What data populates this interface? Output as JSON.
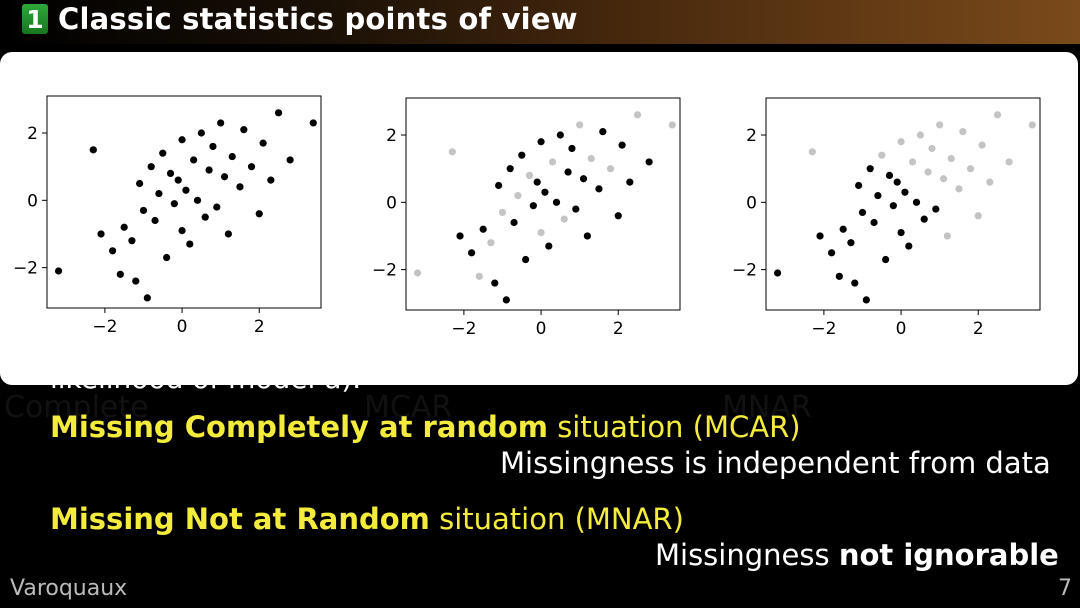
{
  "slide": {
    "section_number": "1",
    "title": "Classic statistics points of view",
    "partially_hidden_line": "likelihood of model a).",
    "mcar": {
      "term": "Missing Completely at random",
      "rest": " situation (MCAR)",
      "note": "Missingness is independent from data"
    },
    "mnar": {
      "term": "Missing Not at Random",
      "rest": " situation (MNAR)",
      "note_plain": "Missingness ",
      "note_bold": "not ignorable"
    },
    "footer_author": "Varoquaux",
    "page_number": "7"
  },
  "figure": {
    "captions": [
      "Complete",
      "MCAR",
      "MNAR"
    ],
    "colors": {
      "observed": "#000000",
      "missing": "#c4c4c4"
    }
  },
  "chart_data": [
    {
      "type": "scatter",
      "title": "",
      "caption": "Complete",
      "xlim": [
        -3.5,
        3.6
      ],
      "ylim": [
        -3.2,
        3.1
      ],
      "xticks": [
        "−2",
        "0",
        "2"
      ],
      "yticks": [
        "−2",
        "0",
        "2"
      ],
      "series": [
        {
          "color": "#000000",
          "points": [
            [
              -3.2,
              -2.1
            ],
            [
              -2.3,
              1.5
            ],
            [
              -2.1,
              -1.0
            ],
            [
              -1.8,
              -1.5
            ],
            [
              -1.6,
              -2.2
            ],
            [
              -1.5,
              -0.8
            ],
            [
              -1.3,
              -1.2
            ],
            [
              -1.2,
              -2.4
            ],
            [
              -1.1,
              0.5
            ],
            [
              -1.0,
              -0.3
            ],
            [
              -0.9,
              -2.9
            ],
            [
              -0.8,
              1.0
            ],
            [
              -0.7,
              -0.6
            ],
            [
              -0.6,
              0.2
            ],
            [
              -0.5,
              1.4
            ],
            [
              -0.4,
              -1.7
            ],
            [
              -0.3,
              0.8
            ],
            [
              -0.2,
              -0.1
            ],
            [
              -0.1,
              0.6
            ],
            [
              0.0,
              -0.9
            ],
            [
              0.0,
              1.8
            ],
            [
              0.1,
              0.3
            ],
            [
              0.2,
              -1.3
            ],
            [
              0.3,
              1.2
            ],
            [
              0.4,
              0.0
            ],
            [
              0.5,
              2.0
            ],
            [
              0.6,
              -0.5
            ],
            [
              0.7,
              0.9
            ],
            [
              0.8,
              1.6
            ],
            [
              0.9,
              -0.2
            ],
            [
              1.0,
              2.3
            ],
            [
              1.1,
              0.7
            ],
            [
              1.2,
              -1.0
            ],
            [
              1.3,
              1.3
            ],
            [
              1.5,
              0.4
            ],
            [
              1.6,
              2.1
            ],
            [
              1.8,
              1.0
            ],
            [
              2.0,
              -0.4
            ],
            [
              2.1,
              1.7
            ],
            [
              2.3,
              0.6
            ],
            [
              2.5,
              2.6
            ],
            [
              2.8,
              1.2
            ],
            [
              3.4,
              2.3
            ]
          ]
        }
      ]
    },
    {
      "type": "scatter",
      "title": "",
      "caption": "MCAR",
      "xlim": [
        -3.5,
        3.6
      ],
      "ylim": [
        -3.2,
        3.1
      ],
      "xticks": [
        "−2",
        "0",
        "2"
      ],
      "yticks": [
        "−2",
        "0",
        "2"
      ],
      "series": [
        {
          "color": "#c4c4c4",
          "points": [
            [
              -3.2,
              -2.1
            ],
            [
              -2.3,
              1.5
            ],
            [
              -1.6,
              -2.2
            ],
            [
              -1.3,
              -1.2
            ],
            [
              -1.0,
              -0.3
            ],
            [
              -0.6,
              0.2
            ],
            [
              -0.3,
              0.8
            ],
            [
              0.0,
              -0.9
            ],
            [
              0.3,
              1.2
            ],
            [
              0.6,
              -0.5
            ],
            [
              1.0,
              2.3
            ],
            [
              1.3,
              1.3
            ],
            [
              1.8,
              1.0
            ],
            [
              2.5,
              2.6
            ],
            [
              3.4,
              2.3
            ]
          ]
        },
        {
          "color": "#000000",
          "points": [
            [
              -2.1,
              -1.0
            ],
            [
              -1.8,
              -1.5
            ],
            [
              -1.5,
              -0.8
            ],
            [
              -1.2,
              -2.4
            ],
            [
              -1.1,
              0.5
            ],
            [
              -0.9,
              -2.9
            ],
            [
              -0.8,
              1.0
            ],
            [
              -0.7,
              -0.6
            ],
            [
              -0.5,
              1.4
            ],
            [
              -0.4,
              -1.7
            ],
            [
              -0.2,
              -0.1
            ],
            [
              -0.1,
              0.6
            ],
            [
              0.0,
              1.8
            ],
            [
              0.1,
              0.3
            ],
            [
              0.2,
              -1.3
            ],
            [
              0.4,
              0.0
            ],
            [
              0.5,
              2.0
            ],
            [
              0.7,
              0.9
            ],
            [
              0.8,
              1.6
            ],
            [
              0.9,
              -0.2
            ],
            [
              1.1,
              0.7
            ],
            [
              1.2,
              -1.0
            ],
            [
              1.5,
              0.4
            ],
            [
              1.6,
              2.1
            ],
            [
              2.0,
              -0.4
            ],
            [
              2.1,
              1.7
            ],
            [
              2.3,
              0.6
            ],
            [
              2.8,
              1.2
            ]
          ]
        }
      ]
    },
    {
      "type": "scatter",
      "title": "",
      "caption": "MNAR",
      "xlim": [
        -3.5,
        3.6
      ],
      "ylim": [
        -3.2,
        3.1
      ],
      "xticks": [
        "−2",
        "0",
        "2"
      ],
      "yticks": [
        "−2",
        "0",
        "2"
      ],
      "series": [
        {
          "color": "#c4c4c4",
          "points": [
            [
              -2.3,
              1.5
            ],
            [
              -0.5,
              1.4
            ],
            [
              0.0,
              1.8
            ],
            [
              0.3,
              1.2
            ],
            [
              0.5,
              2.0
            ],
            [
              0.7,
              0.9
            ],
            [
              0.8,
              1.6
            ],
            [
              1.0,
              2.3
            ],
            [
              1.1,
              0.7
            ],
            [
              1.2,
              -1.0
            ],
            [
              1.3,
              1.3
            ],
            [
              1.5,
              0.4
            ],
            [
              1.6,
              2.1
            ],
            [
              1.8,
              1.0
            ],
            [
              2.0,
              -0.4
            ],
            [
              2.1,
              1.7
            ],
            [
              2.3,
              0.6
            ],
            [
              2.5,
              2.6
            ],
            [
              2.8,
              1.2
            ],
            [
              3.4,
              2.3
            ]
          ]
        },
        {
          "color": "#000000",
          "points": [
            [
              -3.2,
              -2.1
            ],
            [
              -2.1,
              -1.0
            ],
            [
              -1.8,
              -1.5
            ],
            [
              -1.6,
              -2.2
            ],
            [
              -1.5,
              -0.8
            ],
            [
              -1.3,
              -1.2
            ],
            [
              -1.2,
              -2.4
            ],
            [
              -1.1,
              0.5
            ],
            [
              -1.0,
              -0.3
            ],
            [
              -0.9,
              -2.9
            ],
            [
              -0.8,
              1.0
            ],
            [
              -0.7,
              -0.6
            ],
            [
              -0.6,
              0.2
            ],
            [
              -0.4,
              -1.7
            ],
            [
              -0.3,
              0.8
            ],
            [
              -0.2,
              -0.1
            ],
            [
              -0.1,
              0.6
            ],
            [
              0.0,
              -0.9
            ],
            [
              0.1,
              0.3
            ],
            [
              0.2,
              -1.3
            ],
            [
              0.4,
              0.0
            ],
            [
              0.6,
              -0.5
            ],
            [
              0.9,
              -0.2
            ]
          ]
        }
      ]
    }
  ]
}
